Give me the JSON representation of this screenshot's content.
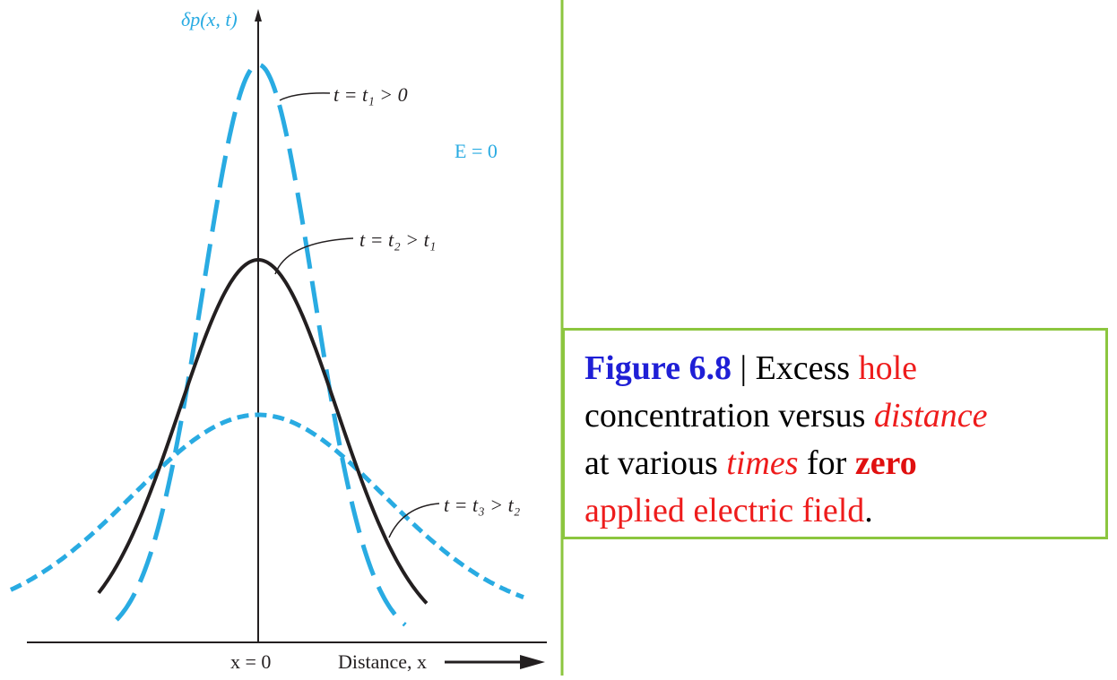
{
  "figure": {
    "y_axis_label": "δp(x, t)",
    "x_axis_label": "Distance, x",
    "origin_label": "x = 0",
    "field_label": "E = 0",
    "field_color": "#29abe2",
    "curves": [
      {
        "label": "t = t₁ > 0",
        "style": "long-dashed",
        "color": "#29abe2"
      },
      {
        "label": "t = t₂ > t₁",
        "style": "solid",
        "color": "#231f20"
      },
      {
        "label": "t = t₃ > t₂",
        "style": "short-dashed",
        "color": "#29abe2"
      }
    ]
  },
  "caption": {
    "figure_number": "Figure 6.8",
    "separator": " | ",
    "part1": "Excess ",
    "part2": "hole",
    "part3": "concentration versus ",
    "part4": "distance",
    "part5": "at various ",
    "part6": "times",
    "part7": " for ",
    "part8": "zero",
    "part9": "applied electric field",
    "part10": ".",
    "border_color": "#8cc63f",
    "number_color": "#1f1fd6",
    "highlight_color": "#ee1c1c"
  },
  "divider_color": "#8cc63f"
}
